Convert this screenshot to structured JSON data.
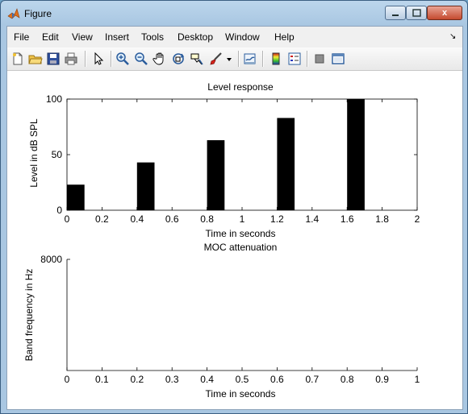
{
  "window": {
    "title": "Figure",
    "close_label": "x"
  },
  "menu": [
    "File",
    "Edit",
    "View",
    "Insert",
    "Tools",
    "Desktop",
    "Window",
    "Help"
  ],
  "toolbar": {
    "icons": [
      "new-file-icon",
      "open-folder-icon",
      "save-icon",
      "print-icon",
      "pointer-icon",
      "zoom-in-icon",
      "zoom-out-icon",
      "pan-hand-icon",
      "rotate-3d-icon",
      "data-cursor-icon",
      "brush-icon",
      "link-plot-icon",
      "colorbar-icon",
      "legend-icon",
      "hide-plot-tools-icon",
      "show-plot-tools-icon"
    ]
  },
  "chart_data": [
    {
      "type": "bar",
      "title": "Level response",
      "xlabel": "Time in seconds",
      "ylabel": "Level in dB SPL",
      "xlim": [
        0,
        2
      ],
      "ylim": [
        0,
        100
      ],
      "xticks": [
        "0",
        "0.2",
        "0.4",
        "0.6",
        "0.8",
        "1",
        "1.2",
        "1.4",
        "1.6",
        "1.8",
        "2"
      ],
      "yticks": [
        "0",
        "50",
        "100"
      ],
      "bars": [
        {
          "x0": 0.0,
          "x1": 0.1,
          "value": 23
        },
        {
          "x0": 0.4,
          "x1": 0.5,
          "value": 43
        },
        {
          "x0": 0.8,
          "x1": 0.9,
          "value": 63
        },
        {
          "x0": 1.2,
          "x1": 1.3,
          "value": 83
        },
        {
          "x0": 1.6,
          "x1": 1.7,
          "value": 100
        }
      ],
      "color": "#000000",
      "grid": false
    },
    {
      "type": "line",
      "title": "MOC attenuation",
      "xlabel": "Time in seconds",
      "ylabel": "Band frequency in Hz",
      "xlim": [
        0,
        1
      ],
      "xticks": [
        "0",
        "0.1",
        "0.2",
        "0.3",
        "0.4",
        "0.5",
        "0.6",
        "0.7",
        "0.8",
        "0.9",
        "1"
      ],
      "yticks": [
        "8000"
      ],
      "series": [],
      "grid": false
    }
  ]
}
